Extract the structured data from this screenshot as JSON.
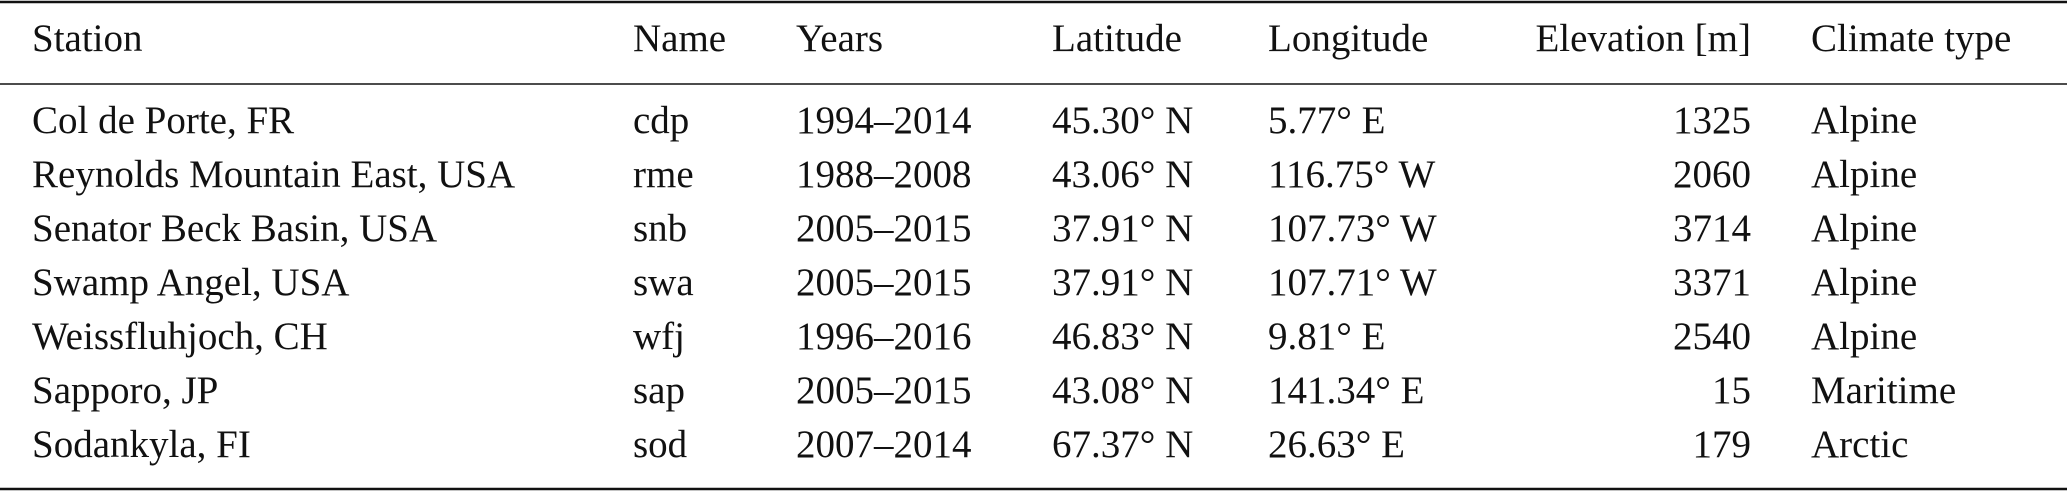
{
  "table": {
    "header": [
      "Station",
      "Name",
      "Years",
      "Latitude",
      "Longitude",
      "Elevation [m]",
      "Climate type"
    ],
    "rows": [
      [
        "Col de Porte, FR",
        "cdp",
        "1994–2014",
        "45.30° N",
        "5.77° E",
        "1325",
        "Alpine"
      ],
      [
        "Reynolds Mountain East, USA",
        "rme",
        "1988–2008",
        "43.06° N",
        "116.75° W",
        "2060",
        "Alpine"
      ],
      [
        "Senator Beck Basin, USA",
        "snb",
        "2005–2015",
        "37.91° N",
        "107.73° W",
        "3714",
        "Alpine"
      ],
      [
        "Swamp Angel, USA",
        "swa",
        "2005–2015",
        "37.91° N",
        "107.71° W",
        "3371",
        "Alpine"
      ],
      [
        "Weissfluhjoch, CH",
        "wfj",
        "1996–2016",
        "46.83° N",
        "9.81° E",
        "2540",
        "Alpine"
      ],
      [
        "Sapporo, JP",
        "sap",
        "2005–2015",
        "43.08° N",
        "141.34° E",
        "15",
        "Maritime"
      ],
      [
        "Sodankyla, FI",
        "sod",
        "2007–2014",
        "67.37° N",
        "26.63° E",
        "179",
        "Arctic"
      ]
    ]
  }
}
